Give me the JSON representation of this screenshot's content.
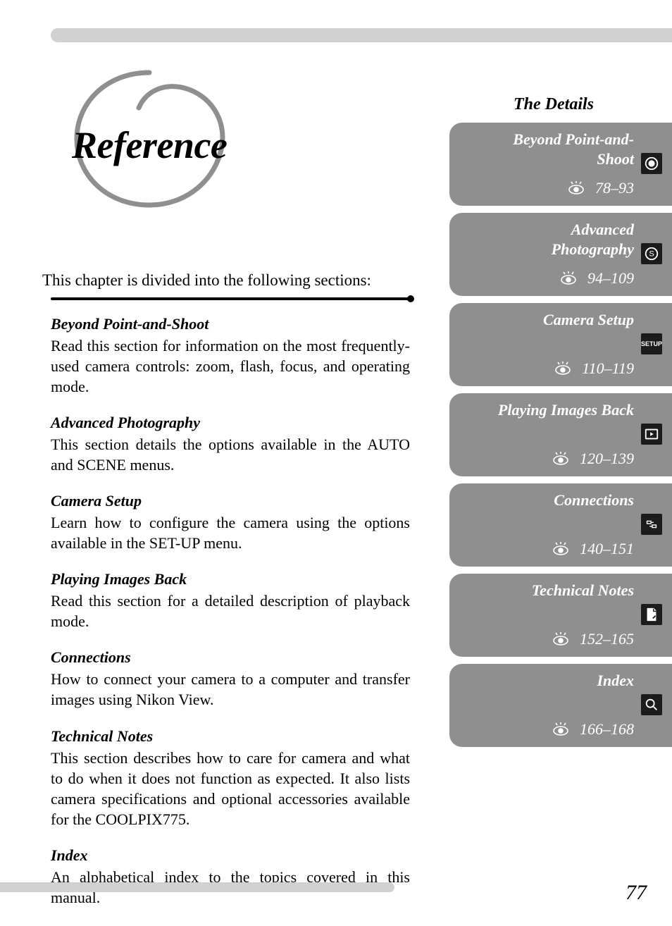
{
  "page_title": "Reference",
  "intro_line": "This chapter is divided into the following sections:",
  "page_number": "77",
  "sidebar_title": "The Details",
  "colors": {
    "tab_bg": "#8f8f8f",
    "icon_bg": "#1c1c1c",
    "bar_bg": "#d1d1d1",
    "text": "#000000",
    "tab_text": "#ffffff"
  },
  "sections": [
    {
      "title": "Beyond Point-and-Shoot",
      "body": "Read this section for information on the most frequently-used camera controls: zoom, flash, focus, and operating mode."
    },
    {
      "title": "Advanced Photography",
      "body": "This section details the options available in the AUTO and SCENE menus."
    },
    {
      "title": "Camera Setup",
      "body": "Learn how to configure the camera using the options available in the SET-UP menu."
    },
    {
      "title": "Playing Images Back",
      "body": "Read this section for a detailed description of playback mode."
    },
    {
      "title": "Connections",
      "body": "How to connect your camera to a computer and transfer images using Nikon View."
    },
    {
      "title": "Technical Notes",
      "body": "This section describes how to care for camera and what to do when it does not function as expected.  It also lists camera specifications and optional accessories available for the COOLPIX775."
    },
    {
      "title": "Index",
      "body": "An alphabetical index to the topics covered in this manual."
    }
  ],
  "tabs": [
    {
      "label": "Beyond Point-and-Shoot",
      "pages": "78–93",
      "icon": "record"
    },
    {
      "label": "Advanced Photography",
      "pages": "94–109",
      "icon": "s-circle"
    },
    {
      "label": "Camera Setup",
      "pages": "110–119",
      "icon": "setup"
    },
    {
      "label": "Playing Images Back",
      "pages": "120–139",
      "icon": "playback"
    },
    {
      "label": "Connections",
      "pages": "140–151",
      "icon": "connection"
    },
    {
      "label": "Technical Notes",
      "pages": "152–165",
      "icon": "notes"
    },
    {
      "label": "Index",
      "pages": "166–168",
      "icon": "search"
    }
  ]
}
